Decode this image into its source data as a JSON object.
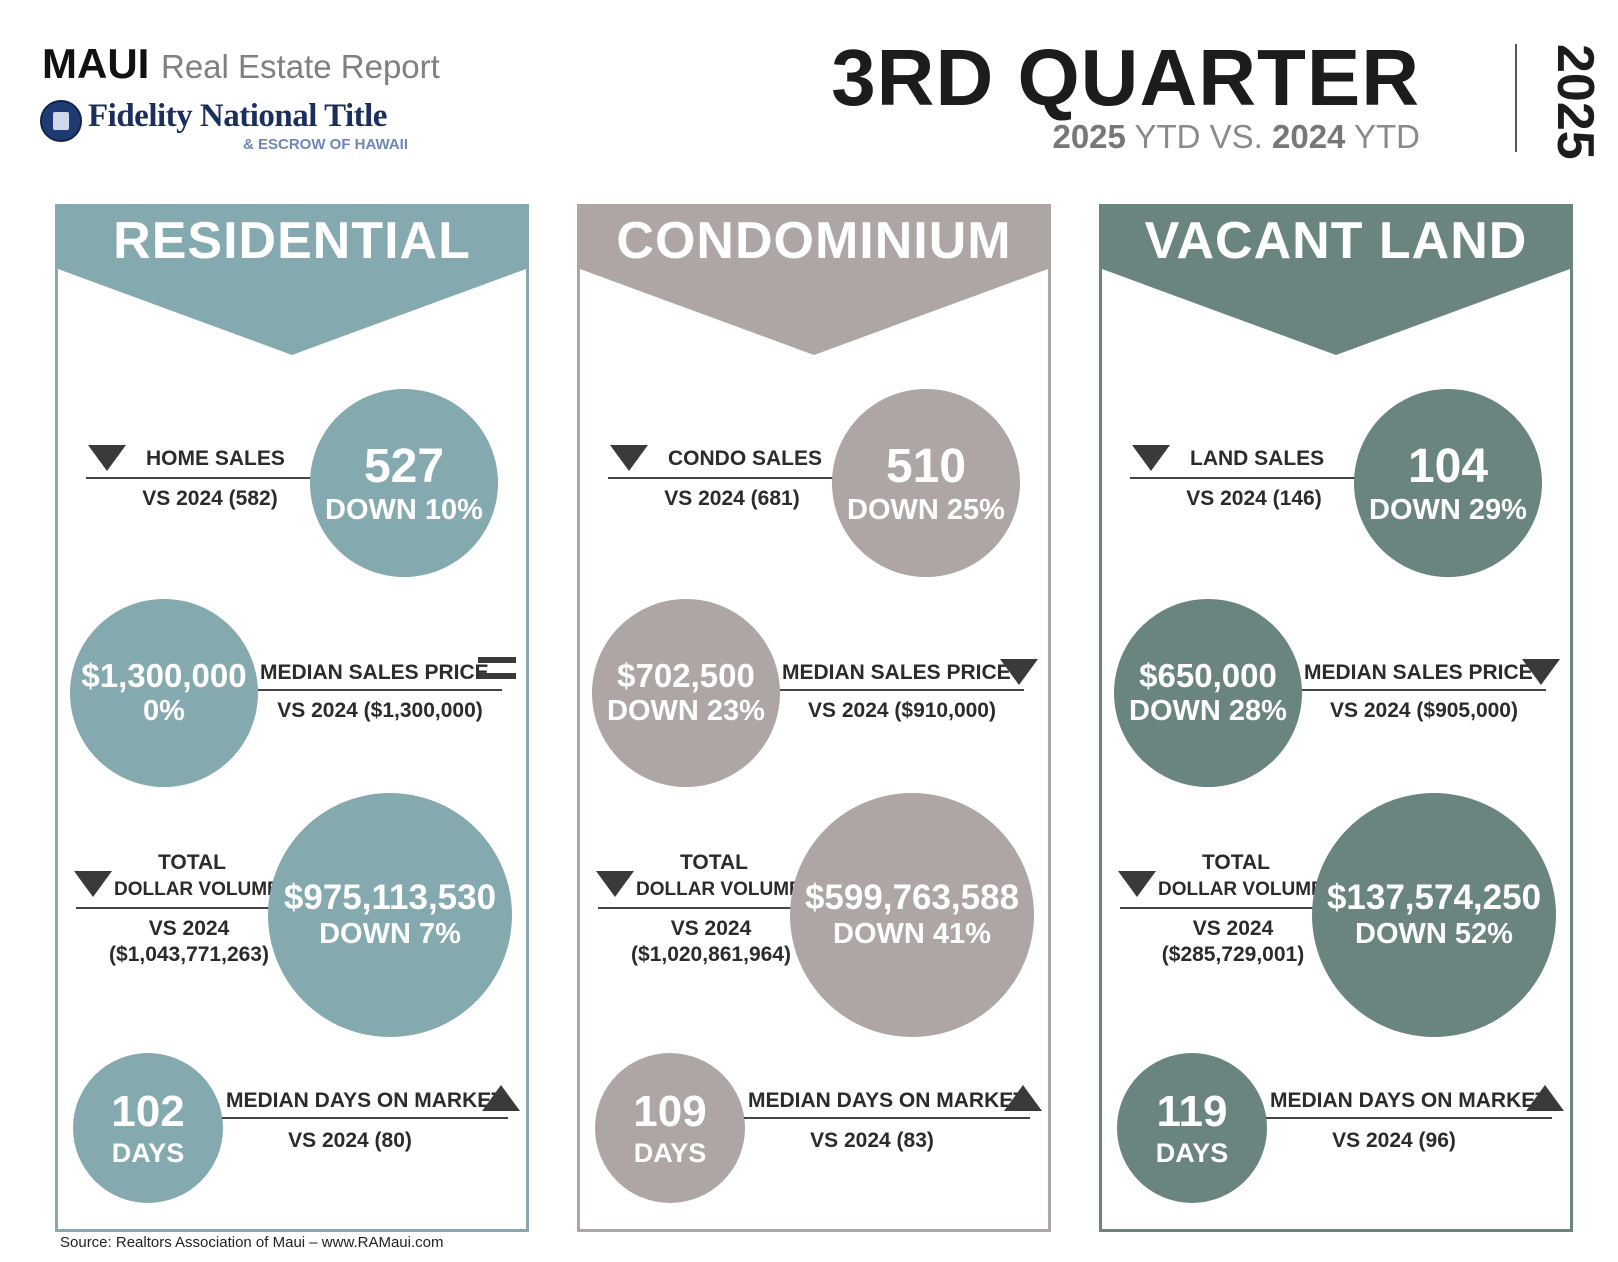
{
  "header": {
    "maui": "MAUI",
    "subtitle": "Real Estate Report",
    "logo_name": "Fidelity National Title",
    "logo_sub": "& ESCROW OF HAWAII",
    "quarter": "3RD QUARTER",
    "ytd_2025": "2025",
    "ytd_mid": "YTD VS.",
    "ytd_2024": "2024",
    "ytd_end": "YTD",
    "year": "2025"
  },
  "colors": {
    "residential": "#84aaaf",
    "condominium": "#ada6a4",
    "vacant_land": "#6a8580"
  },
  "panels": [
    {
      "title": "RESIDENTIAL",
      "sales": {
        "label": "HOME SALES",
        "compare": "VS 2024 (582)",
        "value": "527",
        "change": "DOWN 10%",
        "trend": "down"
      },
      "median": {
        "value": "$1,300,000",
        "change": "0%",
        "label": "MEDIAN SALES PRICE",
        "compare": "VS 2024 ($1,300,000)",
        "trend": "equal"
      },
      "volume": {
        "label1": "TOTAL",
        "label2": "DOLLAR VOLUME",
        "compare1": "VS 2024",
        "compare2": "($1,043,771,263)",
        "value": "$975,113,530",
        "change": "DOWN 7%",
        "trend": "down"
      },
      "days": {
        "value": "102",
        "unit": "DAYS",
        "label": "MEDIAN DAYS ON MARKET",
        "compare": "VS 2024 (80)",
        "trend": "up"
      }
    },
    {
      "title": "CONDOMINIUM",
      "sales": {
        "label": "CONDO SALES",
        "compare": "VS 2024 (681)",
        "value": "510",
        "change": "DOWN 25%",
        "trend": "down"
      },
      "median": {
        "value": "$702,500",
        "change": "DOWN 23%",
        "label": "MEDIAN SALES PRICE",
        "compare": "VS 2024 ($910,000)",
        "trend": "down"
      },
      "volume": {
        "label1": "TOTAL",
        "label2": "DOLLAR VOLUME",
        "compare1": "VS 2024",
        "compare2": "($1,020,861,964)",
        "value": "$599,763,588",
        "change": "DOWN 41%",
        "trend": "down"
      },
      "days": {
        "value": "109",
        "unit": "DAYS",
        "label": "MEDIAN DAYS ON MARKET",
        "compare": "VS 2024 (83)",
        "trend": "up"
      }
    },
    {
      "title": "VACANT LAND",
      "sales": {
        "label": "LAND SALES",
        "compare": "VS 2024 (146)",
        "value": "104",
        "change": "DOWN 29%",
        "trend": "down"
      },
      "median": {
        "value": "$650,000",
        "change": "DOWN 28%",
        "label": "MEDIAN SALES PRICE",
        "compare": "VS 2024 ($905,000)",
        "trend": "down"
      },
      "volume": {
        "label1": "TOTAL",
        "label2": "DOLLAR VOLUME",
        "compare1": "VS 2024",
        "compare2": "($285,729,001)",
        "value": "$137,574,250",
        "change": "DOWN 52%",
        "trend": "down"
      },
      "days": {
        "value": "119",
        "unit": "DAYS",
        "label": "MEDIAN DAYS ON MARKET",
        "compare": "VS 2024 (96)",
        "trend": "up"
      }
    }
  ],
  "footer": {
    "source": "Source: Realtors Association of Maui – www.RAMaui.com"
  }
}
